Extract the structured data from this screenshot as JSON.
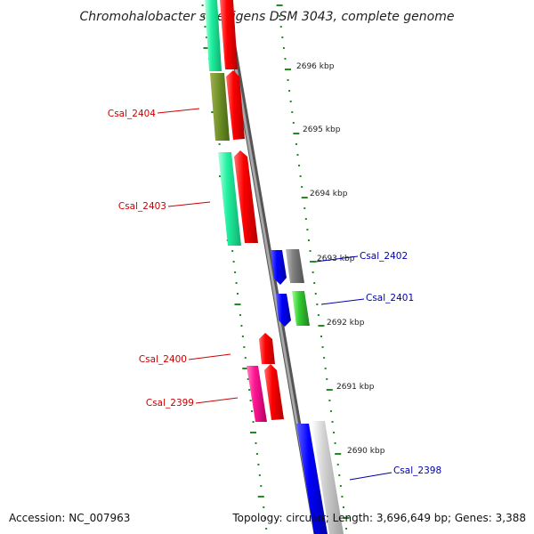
{
  "title": "Chromohalobacter salexigens DSM 3043, complete genome",
  "footer": {
    "accession": "Accession: NC_007963",
    "summary": "Topology: circular; Length: 3,696,649 bp; Genes: 3,388"
  },
  "ruler": [
    "2696 kbp",
    "2695 kbp",
    "2694 kbp",
    "2693 kbp",
    "2692 kbp",
    "2691 kbp",
    "2690 kbp"
  ],
  "genes": [
    {
      "label": "Csal_2404",
      "color": "#cc0000"
    },
    {
      "label": "Csal_2403",
      "color": "#cc0000"
    },
    {
      "label": "Csal_2402",
      "color": "#0000aa"
    },
    {
      "label": "Csal_2401",
      "color": "#0000aa"
    },
    {
      "label": "Csal_2400",
      "color": "#cc0000"
    },
    {
      "label": "Csal_2399",
      "color": "#cc0000"
    },
    {
      "label": "Csal_2398",
      "color": "#0000aa"
    }
  ],
  "colors": {
    "backbone": "#808080",
    "dots": "#228b22",
    "forward_label": "#cc0000",
    "reverse_label": "#0000aa"
  }
}
